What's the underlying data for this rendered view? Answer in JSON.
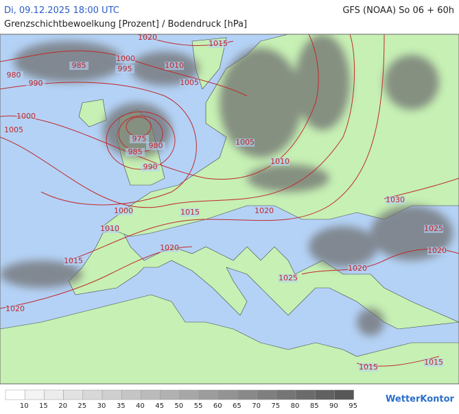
{
  "header": {
    "valid_time": "Di, 09.12.2025 18:00 UTC",
    "model_run": "GFS (NOAA) So 06 + 60h",
    "subtitle": "Grenzschichtbewoelkung [Prozent] / Bodendruck [hPa]"
  },
  "isobar_labels": [
    1020,
    1015,
    980,
    985,
    1000,
    995,
    1010,
    1005,
    990,
    1000,
    1005,
    975,
    980,
    985,
    990,
    1005,
    1010,
    1000,
    1015,
    1020,
    1010,
    1030,
    1025,
    1020,
    1015,
    1020,
    1020,
    1025,
    1020,
    1015,
    1015
  ],
  "legend": {
    "values": [
      10,
      15,
      20,
      25,
      30,
      35,
      40,
      45,
      50,
      55,
      60,
      65,
      70,
      75,
      80,
      85,
      90,
      95
    ],
    "colors": [
      "#ffffff",
      "#f4f4f4",
      "#ececec",
      "#e2e2e2",
      "#d8d8d8",
      "#cfcfcf",
      "#c5c5c5",
      "#bbbbbb",
      "#b1b1b1",
      "#a7a7a7",
      "#9d9d9d",
      "#939393",
      "#898989",
      "#7f7f7f",
      "#757575",
      "#6b6b6b",
      "#616161",
      "#575757"
    ]
  },
  "logo": "WetterKontor"
}
